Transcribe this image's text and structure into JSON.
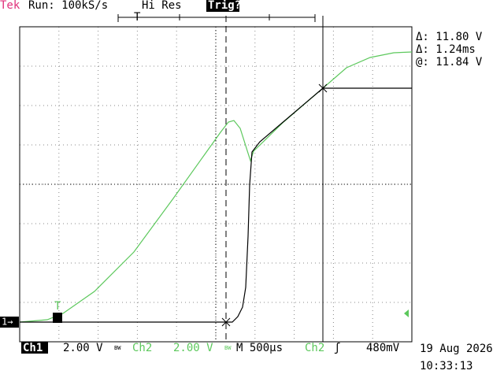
{
  "header": {
    "brand": "Tek",
    "acquisition": "Run: 100kS/s",
    "mode": "Hi Res",
    "trigger_status": "Trig?",
    "trigger_position_marker": "T"
  },
  "cursor_readout": [
    "Δ: 11.80 V",
    "Δ: 1.24ms",
    "@: 11.84 V"
  ],
  "markers": {
    "trigger_level": "T",
    "ch1_ground": "1→"
  },
  "status_bar": {
    "ch1_label": "Ch1",
    "ch1_scale": "2.00 V",
    "bandwidth": "BW",
    "ch2_label": "Ch2",
    "ch2_scale": "2.00 V",
    "timebase": "M 500µs",
    "trigger_source": "Ch2",
    "trigger_slope": "ʃ",
    "trigger_level": "480mV"
  },
  "timestamp": {
    "date": "19 Aug 2026",
    "time": "10:33:13"
  }
}
